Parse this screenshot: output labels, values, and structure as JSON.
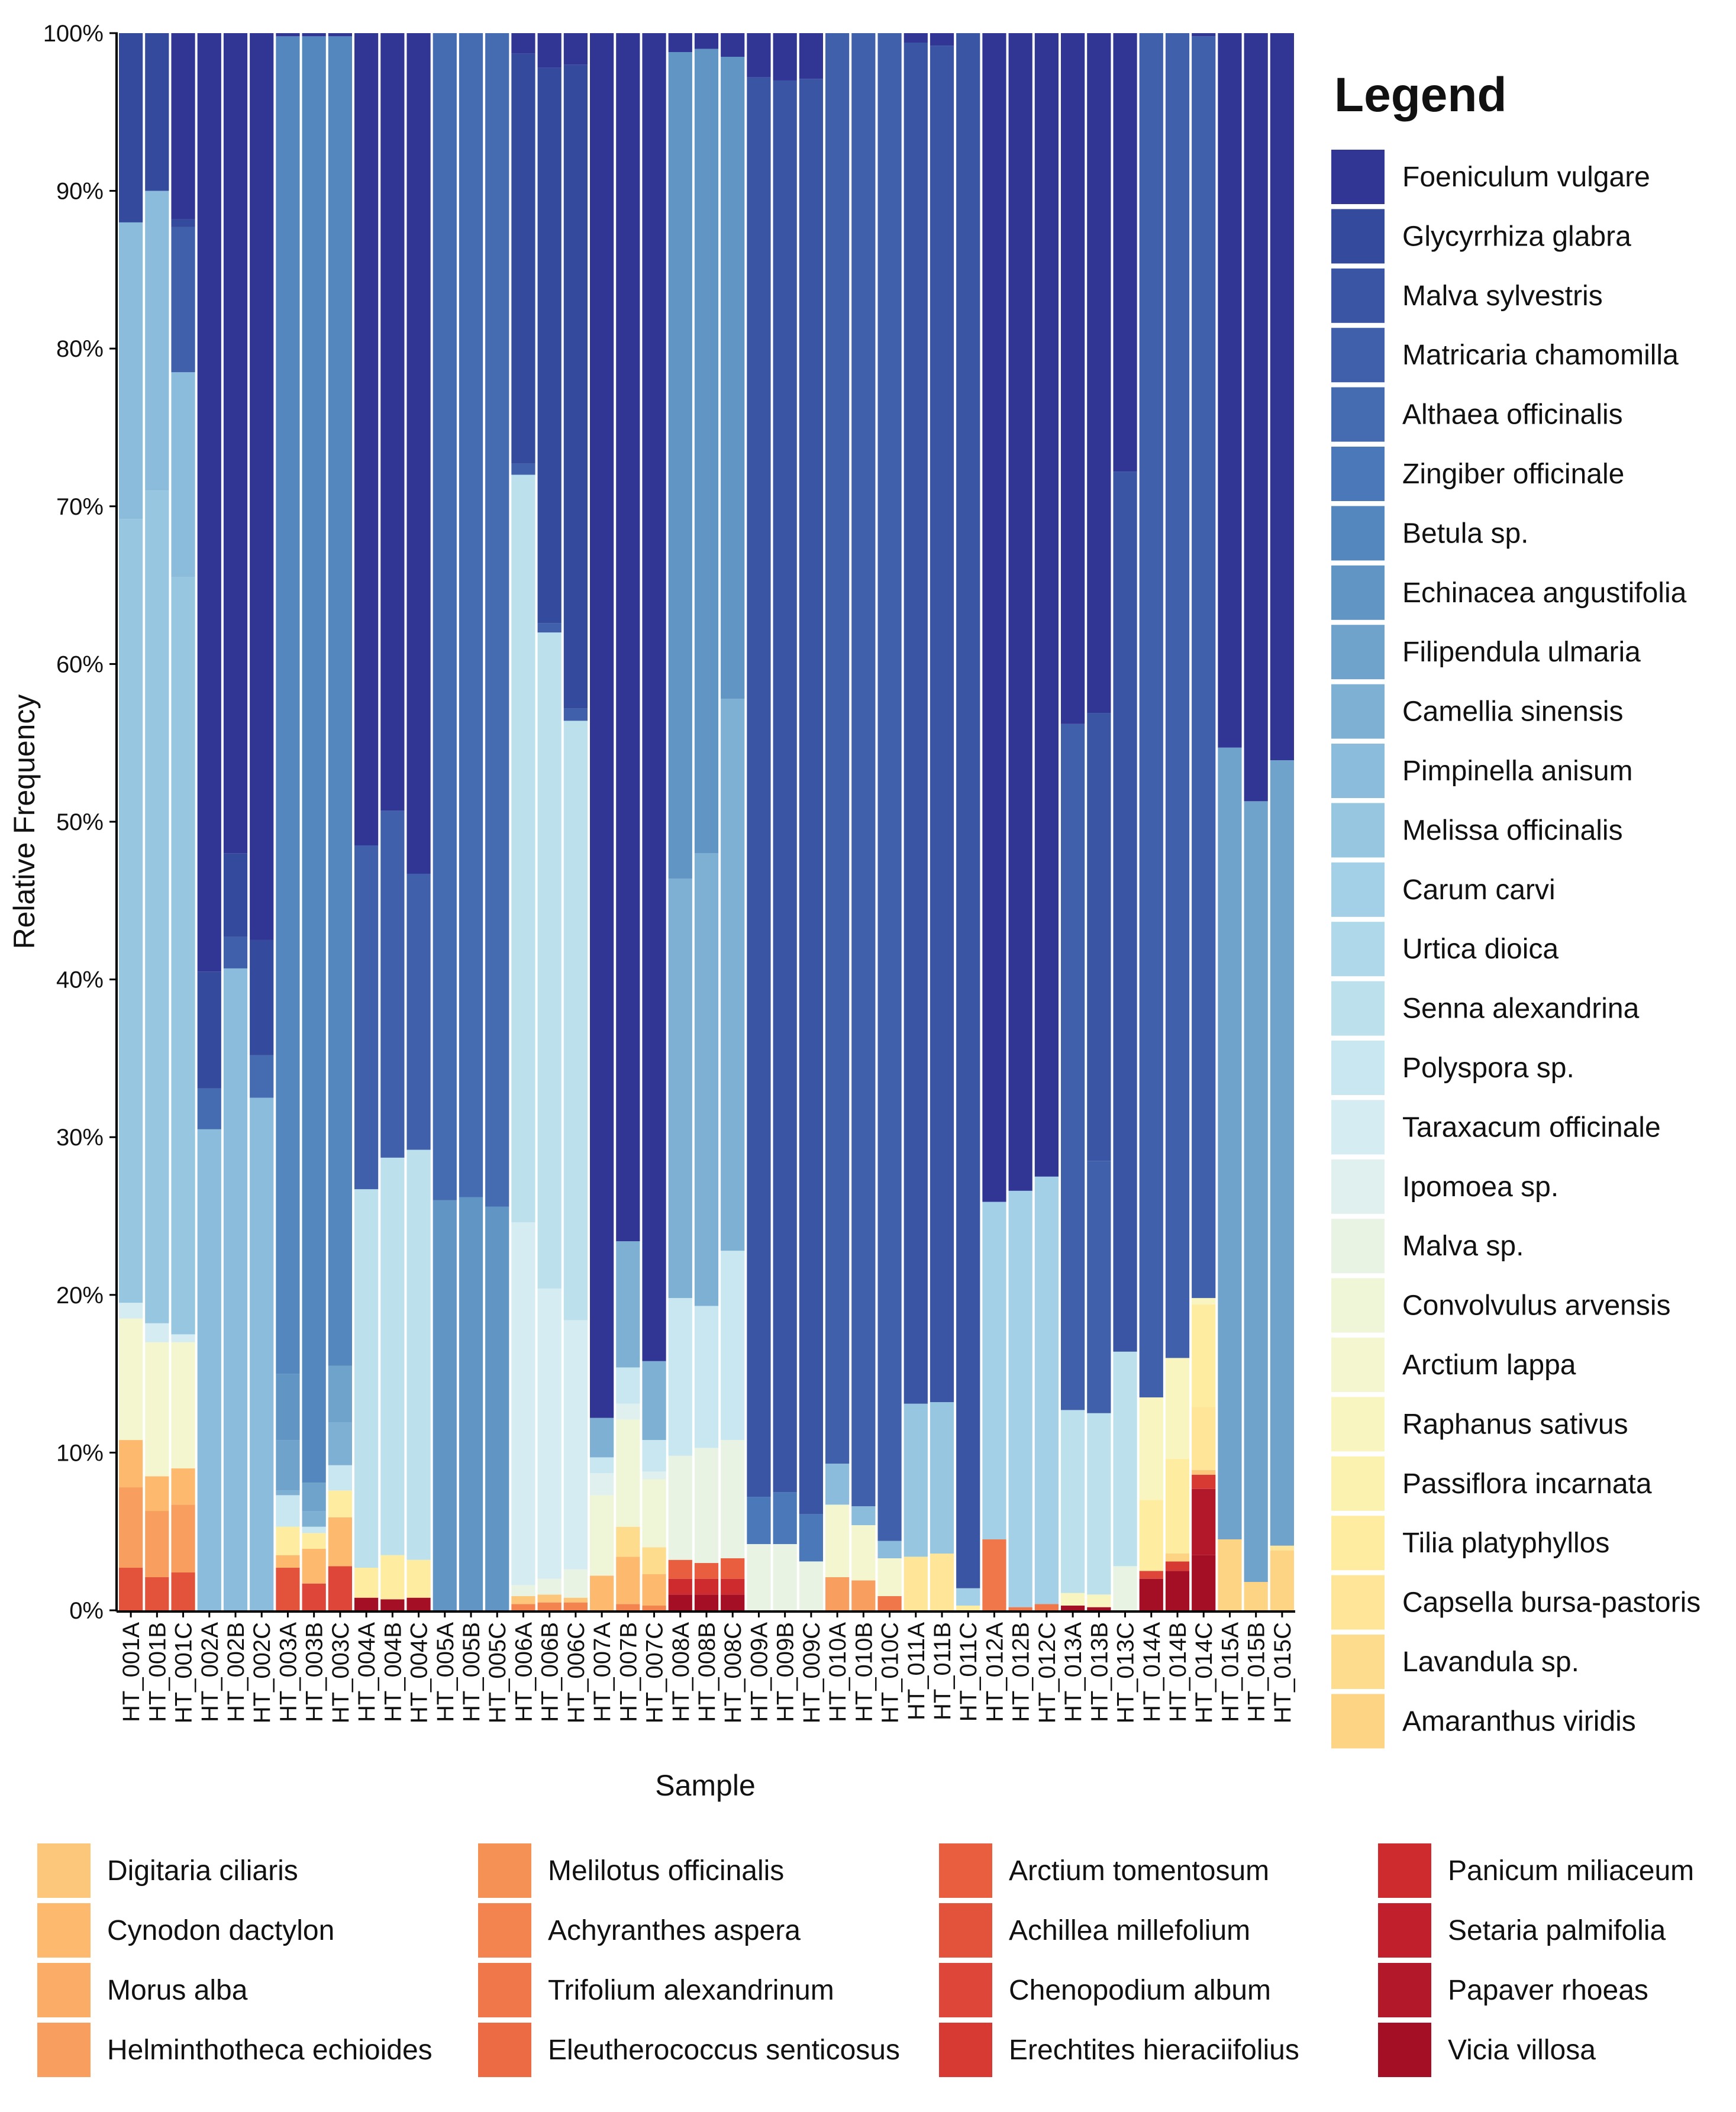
{
  "chart_data": {
    "type": "bar",
    "stacked": true,
    "title": "",
    "xlabel": "Sample",
    "ylabel": "Relative Frequency",
    "ylim": [
      0,
      100
    ],
    "yticks": [
      "0%",
      "10%",
      "20%",
      "30%",
      "40%",
      "50%",
      "60%",
      "70%",
      "80%",
      "90%",
      "100%"
    ],
    "legend_title": "Legend",
    "legend_placement": "right and bottom",
    "species": [
      {
        "name": "Foeniculum vulgare",
        "color": "#313695"
      },
      {
        "name": "Glycyrrhiza glabra",
        "color": "#344a9c"
      },
      {
        "name": "Malva sylvestris",
        "color": "#3a55a4"
      },
      {
        "name": "Matricaria chamomilla",
        "color": "#4060ab"
      },
      {
        "name": "Althaea officinalis",
        "color": "#456bb1"
      },
      {
        "name": "Zingiber officinale",
        "color": "#4a78b8"
      },
      {
        "name": "Betula sp.",
        "color": "#5487bd"
      },
      {
        "name": "Echinacea angustifolia",
        "color": "#6195c3"
      },
      {
        "name": "Filipendula ulmaria",
        "color": "#6fa3cb"
      },
      {
        "name": "Camellia sinensis",
        "color": "#7db0d3"
      },
      {
        "name": "Pimpinella anisum",
        "color": "#8bbcdb"
      },
      {
        "name": "Melissa officinalis",
        "color": "#96c6e0"
      },
      {
        "name": "Carum carvi",
        "color": "#a3d0e6"
      },
      {
        "name": "Urtica dioica",
        "color": "#afd9ea"
      },
      {
        "name": "Senna alexandrina",
        "color": "#bce0ec"
      },
      {
        "name": "Polyspora sp.",
        "color": "#c8e7f0"
      },
      {
        "name": "Taraxacum officinale",
        "color": "#d4ecf2"
      },
      {
        "name": "Ipomoea sp.",
        "color": "#dff0ee"
      },
      {
        "name": "Malva sp.",
        "color": "#e8f3e4"
      },
      {
        "name": "Convolvulus arvensis",
        "color": "#eff6d8"
      },
      {
        "name": "Arctium lappa",
        "color": "#f4f6cf"
      },
      {
        "name": "Raphanus sativus",
        "color": "#f8f5c0"
      },
      {
        "name": "Passiflora incarnata",
        "color": "#fbf2b0"
      },
      {
        "name": "Tilia platyphyllos",
        "color": "#feeda1"
      },
      {
        "name": "Capsella bursa-pastoris",
        "color": "#fee597"
      },
      {
        "name": "Lavandula sp.",
        "color": "#fedc8e"
      },
      {
        "name": "Amaranthus viridis",
        "color": "#fdd384"
      },
      {
        "name": "Digitaria ciliaris",
        "color": "#fdc77b"
      },
      {
        "name": "Cynodon dactylon",
        "color": "#fdba6f"
      },
      {
        "name": "Morus alba",
        "color": "#fbac66"
      },
      {
        "name": "Helminthotheca echioides",
        "color": "#f89e5e"
      },
      {
        "name": "Melilotus officinalis",
        "color": "#f69156"
      },
      {
        "name": "Achyranthes aspera",
        "color": "#f3844f"
      },
      {
        "name": "Trifolium alexandrinum",
        "color": "#f07749"
      },
      {
        "name": "Eleutherococcus senticosus",
        "color": "#ec6a44"
      },
      {
        "name": "Arctium tomentosum",
        "color": "#e85e3f"
      },
      {
        "name": "Achillea millefolium",
        "color": "#e3533b"
      },
      {
        "name": "Chenopodium album",
        "color": "#dd4638"
      },
      {
        "name": "Erechtites hieraciifolius",
        "color": "#d63a33"
      },
      {
        "name": "Panicum miliaceum",
        "color": "#cd2b2e"
      },
      {
        "name": "Setaria palmifolia",
        "color": "#c21f2c"
      },
      {
        "name": "Papaver rhoeas",
        "color": "#b3172a"
      },
      {
        "name": "Vicia villosa",
        "color": "#a50f26"
      }
    ],
    "samples": [
      {
        "name": "HT_001A",
        "segments": [
          [
            37,
            2.7
          ],
          [
            31,
            5.1
          ],
          [
            29,
            3
          ],
          [
            21,
            7.7
          ],
          [
            17,
            1
          ],
          [
            12,
            49.7
          ],
          [
            11,
            18.8
          ],
          [
            2,
            12
          ]
        ]
      },
      {
        "name": "HT_001B",
        "segments": [
          [
            37,
            2.1
          ],
          [
            31,
            4.2
          ],
          [
            29,
            2.2
          ],
          [
            21,
            8.5
          ],
          [
            17,
            1.2
          ],
          [
            12,
            52.8
          ],
          [
            11,
            19
          ],
          [
            2,
            10
          ]
        ]
      },
      {
        "name": "HT_001C",
        "segments": [
          [
            37,
            2.4
          ],
          [
            31,
            4.3
          ],
          [
            29,
            2.3
          ],
          [
            21,
            8
          ],
          [
            17,
            0.5
          ],
          [
            12,
            48
          ],
          [
            11,
            13
          ],
          [
            4,
            9.2
          ],
          [
            2,
            0.5
          ]
        ]
      },
      {
        "name": "HT_002A",
        "segments": [
          [
            11,
            30.5
          ],
          [
            5,
            2.6
          ],
          [
            2,
            7.4
          ]
        ]
      },
      {
        "name": "HT_002B",
        "segments": [
          [
            11,
            40.7
          ],
          [
            4,
            2
          ],
          [
            2,
            5.3
          ]
        ]
      },
      {
        "name": "HT_002C",
        "segments": [
          [
            11,
            32.5
          ],
          [
            5,
            2.7
          ],
          [
            2,
            7.3
          ]
        ]
      },
      {
        "name": "HT_003A",
        "segments": [
          [
            37,
            2.7
          ],
          [
            29,
            0.8
          ],
          [
            24,
            1.8
          ],
          [
            16,
            2
          ],
          [
            10,
            0.3
          ],
          [
            9,
            3.2
          ],
          [
            8,
            4.2
          ],
          [
            7,
            84.8
          ]
        ]
      },
      {
        "name": "HT_003B",
        "segments": [
          [
            38,
            1.7
          ],
          [
            29,
            2.2
          ],
          [
            24,
            1
          ],
          [
            16,
            0.4
          ],
          [
            10,
            1
          ],
          [
            9,
            1.8
          ],
          [
            7,
            91.7
          ]
        ]
      },
      {
        "name": "HT_003C",
        "segments": [
          [
            38,
            2.8
          ],
          [
            29,
            3.1
          ],
          [
            24,
            1.7
          ],
          [
            16,
            1.6
          ],
          [
            10,
            2.7
          ],
          [
            9,
            3.6
          ],
          [
            7,
            84.3
          ]
        ]
      },
      {
        "name": "HT_004A",
        "segments": [
          [
            43,
            0.8
          ],
          [
            24,
            1.9
          ],
          [
            15,
            24
          ],
          [
            4,
            21.8
          ]
        ]
      },
      {
        "name": "HT_004B",
        "segments": [
          [
            43,
            0.7
          ],
          [
            24,
            2.8
          ],
          [
            15,
            25.2
          ],
          [
            4,
            22
          ]
        ]
      },
      {
        "name": "HT_004C",
        "segments": [
          [
            43,
            0.8
          ],
          [
            24,
            2.4
          ],
          [
            15,
            26
          ],
          [
            4,
            17.5
          ]
        ]
      },
      {
        "name": "HT_005A",
        "segments": [
          [
            8,
            26
          ],
          [
            5,
            74
          ]
        ]
      },
      {
        "name": "HT_005B",
        "segments": [
          [
            8,
            26.2
          ],
          [
            5,
            73.8
          ]
        ]
      },
      {
        "name": "HT_005C",
        "segments": [
          [
            8,
            25.6
          ],
          [
            5,
            74.4
          ]
        ]
      },
      {
        "name": "HT_006A",
        "segments": [
          [
            33,
            0.4
          ],
          [
            28,
            0.5
          ],
          [
            19,
            0.7
          ],
          [
            17,
            23
          ],
          [
            15,
            47.4
          ],
          [
            4,
            0.7
          ],
          [
            2,
            26
          ]
        ]
      },
      {
        "name": "HT_006B",
        "segments": [
          [
            33,
            0.5
          ],
          [
            28,
            0.5
          ],
          [
            19,
            1
          ],
          [
            17,
            18.4
          ],
          [
            15,
            41.6
          ],
          [
            4,
            0.6
          ],
          [
            2,
            35.2
          ]
        ]
      },
      {
        "name": "HT_006C",
        "segments": [
          [
            33,
            0.5
          ],
          [
            28,
            0.3
          ],
          [
            19,
            1.8
          ],
          [
            17,
            15.8
          ],
          [
            15,
            38
          ],
          [
            4,
            0.8
          ],
          [
            2,
            40.8
          ]
        ]
      },
      {
        "name": "HT_007A",
        "segments": [
          [
            29,
            2.2
          ],
          [
            20,
            5.1
          ],
          [
            18,
            1.4
          ],
          [
            16,
            1
          ],
          [
            10,
            2.5
          ]
        ]
      },
      {
        "name": "HT_007B",
        "segments": [
          [
            33,
            0.4
          ],
          [
            29,
            3
          ],
          [
            26,
            1.9
          ],
          [
            20,
            6.8
          ],
          [
            18,
            1
          ],
          [
            16,
            2.3
          ],
          [
            10,
            8
          ]
        ]
      },
      {
        "name": "HT_007C",
        "segments": [
          [
            33,
            0.3
          ],
          [
            29,
            2
          ],
          [
            26,
            1.7
          ],
          [
            20,
            4.3
          ],
          [
            18,
            0.5
          ],
          [
            16,
            2
          ],
          [
            10,
            5
          ]
        ]
      },
      {
        "name": "HT_008A",
        "segments": [
          [
            43,
            1
          ],
          [
            40,
            1
          ],
          [
            36,
            1.2
          ],
          [
            19,
            6.6
          ],
          [
            16,
            10
          ],
          [
            10,
            26.6
          ],
          [
            8,
            52.4
          ]
        ]
      },
      {
        "name": "HT_008B",
        "segments": [
          [
            43,
            1
          ],
          [
            40,
            1
          ],
          [
            36,
            1
          ],
          [
            19,
            7.3
          ],
          [
            16,
            9
          ],
          [
            10,
            28.7
          ],
          [
            8,
            51
          ]
        ]
      },
      {
        "name": "HT_008C",
        "segments": [
          [
            43,
            1
          ],
          [
            40,
            1
          ],
          [
            36,
            1.3
          ],
          [
            19,
            7.5
          ],
          [
            16,
            12
          ],
          [
            10,
            35
          ],
          [
            8,
            40.7
          ]
        ]
      },
      {
        "name": "HT_009A",
        "segments": [
          [
            19,
            4.2
          ],
          [
            6,
            3
          ],
          [
            3,
            90
          ]
        ]
      },
      {
        "name": "HT_009B",
        "segments": [
          [
            19,
            4.2
          ],
          [
            6,
            3.3
          ],
          [
            3,
            89.5
          ]
        ]
      },
      {
        "name": "HT_009C",
        "segments": [
          [
            19,
            3.1
          ],
          [
            6,
            3
          ],
          [
            3,
            91
          ]
        ]
      },
      {
        "name": "HT_010A",
        "segments": [
          [
            31,
            2.1
          ],
          [
            21,
            4.6
          ],
          [
            11,
            2.6
          ],
          [
            4,
            90.7
          ]
        ]
      },
      {
        "name": "HT_010B",
        "segments": [
          [
            31,
            1.9
          ],
          [
            21,
            3.5
          ],
          [
            11,
            1.2
          ],
          [
            4,
            93.4
          ]
        ]
      },
      {
        "name": "HT_010C",
        "segments": [
          [
            34,
            0.9
          ],
          [
            21,
            2.4
          ],
          [
            11,
            1.1
          ],
          [
            4,
            95.6
          ]
        ]
      },
      {
        "name": "HT_011A",
        "segments": [
          [
            25,
            3.4
          ],
          [
            12,
            9.7
          ],
          [
            3,
            86.3
          ]
        ]
      },
      {
        "name": "HT_011B",
        "segments": [
          [
            25,
            3.6
          ],
          [
            12,
            9.6
          ],
          [
            3,
            86
          ]
        ]
      },
      {
        "name": "HT_011C",
        "segments": [
          [
            24,
            0.3
          ],
          [
            13,
            1.1
          ],
          [
            3,
            98.6
          ]
        ]
      },
      {
        "name": "HT_012A",
        "segments": [
          [
            34,
            4.5
          ],
          [
            13,
            21.4
          ]
        ]
      },
      {
        "name": "HT_012B",
        "segments": [
          [
            34,
            0.2
          ],
          [
            13,
            26.4
          ]
        ]
      },
      {
        "name": "HT_012C",
        "segments": [
          [
            34,
            0.4
          ],
          [
            13,
            27.1
          ]
        ]
      },
      {
        "name": "HT_013A",
        "segments": [
          [
            43,
            0.3
          ],
          [
            22,
            0.8
          ],
          [
            15,
            11.6
          ],
          [
            4,
            43.5
          ]
        ]
      },
      {
        "name": "HT_013B",
        "segments": [
          [
            43,
            0.2
          ],
          [
            22,
            0.8
          ],
          [
            15,
            11.5
          ],
          [
            4,
            16
          ],
          [
            3,
            28.4
          ]
        ]
      },
      {
        "name": "HT_013C",
        "segments": [
          [
            19,
            2.8
          ],
          [
            15,
            13.6
          ],
          [
            3,
            55.8
          ]
        ]
      },
      {
        "name": "HT_014A",
        "segments": [
          [
            43,
            2
          ],
          [
            38,
            0.5
          ],
          [
            24,
            4.5
          ],
          [
            22,
            6.5
          ],
          [
            4,
            86.5
          ]
        ]
      },
      {
        "name": "HT_014B",
        "segments": [
          [
            43,
            2.5
          ],
          [
            39,
            0.6
          ],
          [
            27,
            0.5
          ],
          [
            24,
            6
          ],
          [
            22,
            6.4
          ],
          [
            4,
            84
          ]
        ]
      },
      {
        "name": "HT_014C",
        "segments": [
          [
            43,
            3.5
          ],
          [
            42,
            4.2
          ],
          [
            39,
            0.9
          ],
          [
            28,
            0.3
          ],
          [
            25,
            4
          ],
          [
            24,
            6.5
          ],
          [
            22,
            0.4
          ],
          [
            4,
            80
          ]
        ]
      },
      {
        "name": "HT_015A",
        "segments": [
          [
            27,
            4.5
          ],
          [
            9,
            50.2
          ]
        ]
      },
      {
        "name": "HT_015B",
        "segments": [
          [
            27,
            1.8
          ],
          [
            9,
            49.5
          ]
        ]
      },
      {
        "name": "HT_015C",
        "segments": [
          [
            27,
            3.8
          ],
          [
            25,
            0.3
          ],
          [
            9,
            49.8
          ]
        ]
      }
    ],
    "segments_note": "segments are [species number (1-based, legend order), percent] stacked bottom to top; remainder is Foeniculum vulgare"
  }
}
